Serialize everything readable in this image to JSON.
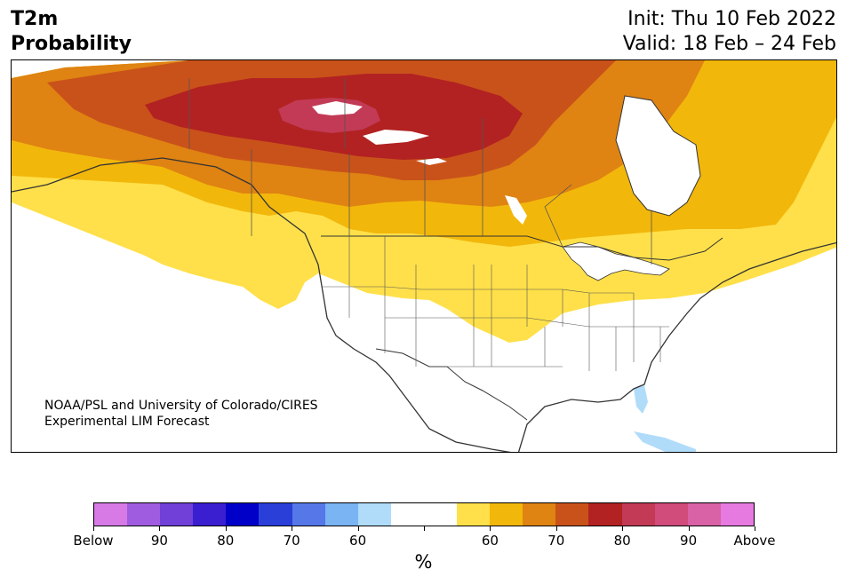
{
  "title": {
    "line1": "T2m",
    "line2": "Probability"
  },
  "dates": {
    "init": "Init: Thu 10 Feb 2022",
    "valid": "Valid: 18 Feb – 24 Feb"
  },
  "credit": {
    "line1": "NOAA/PSL and University of Colorado/CIRES",
    "line2": "Experimental LIM Forecast"
  },
  "colorbar": {
    "colors": [
      "#d77ae6",
      "#a05ce0",
      "#7040d8",
      "#3a1fd0",
      "#0000c8",
      "#2a3fd8",
      "#5577e8",
      "#7ab4f2",
      "#b0dcfa",
      "#ffffff",
      "#ffffff",
      "#ffe04a",
      "#f2b70b",
      "#df8312",
      "#c9521a",
      "#b22222",
      "#c23a55",
      "#d14b7b",
      "#d962a6",
      "#e77ae0"
    ],
    "tick_labels": [
      "Below",
      "90",
      "80",
      "70",
      "60",
      "",
      "60",
      "70",
      "80",
      "90",
      "Above"
    ],
    "unit": "%"
  },
  "map_colors": {
    "above60": "#ffe04a",
    "above65": "#f2b70b",
    "above70": "#df8312",
    "above75": "#c9521a",
    "above80": "#b22222",
    "above85": "#c23a55",
    "below60": "#b0dcfa",
    "land_neutral": "#ffffff",
    "boundary": "#333333"
  }
}
